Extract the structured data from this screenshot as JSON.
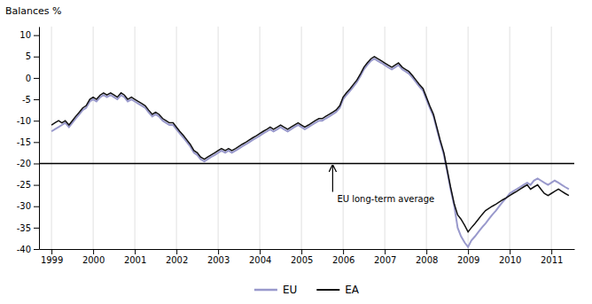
{
  "chart_data": {
    "type": "line",
    "y_label": "Balances %",
    "x": [
      1999.0,
      1999.08,
      1999.17,
      1999.25,
      1999.33,
      1999.42,
      1999.5,
      1999.58,
      1999.67,
      1999.75,
      1999.83,
      1999.92,
      2000.0,
      2000.08,
      2000.17,
      2000.25,
      2000.33,
      2000.42,
      2000.5,
      2000.58,
      2000.67,
      2000.75,
      2000.83,
      2000.92,
      2001.0,
      2001.08,
      2001.17,
      2001.25,
      2001.33,
      2001.42,
      2001.5,
      2001.58,
      2001.67,
      2001.75,
      2001.83,
      2001.92,
      2002.0,
      2002.08,
      2002.17,
      2002.25,
      2002.33,
      2002.42,
      2002.5,
      2002.58,
      2002.67,
      2002.75,
      2002.83,
      2002.92,
      2003.0,
      2003.08,
      2003.17,
      2003.25,
      2003.33,
      2003.42,
      2003.5,
      2003.58,
      2003.67,
      2003.75,
      2003.83,
      2003.92,
      2004.0,
      2004.08,
      2004.17,
      2004.25,
      2004.33,
      2004.42,
      2004.5,
      2004.58,
      2004.67,
      2004.75,
      2004.83,
      2004.92,
      2005.0,
      2005.08,
      2005.17,
      2005.25,
      2005.33,
      2005.42,
      2005.5,
      2005.58,
      2005.67,
      2005.75,
      2005.83,
      2005.92,
      2006.0,
      2006.08,
      2006.17,
      2006.25,
      2006.33,
      2006.42,
      2006.5,
      2006.58,
      2006.67,
      2006.75,
      2006.83,
      2006.92,
      2007.0,
      2007.08,
      2007.17,
      2007.25,
      2007.33,
      2007.42,
      2007.5,
      2007.58,
      2007.67,
      2007.75,
      2007.83,
      2007.92,
      2008.0,
      2008.08,
      2008.17,
      2008.25,
      2008.33,
      2008.42,
      2008.5,
      2008.58,
      2008.67,
      2008.75,
      2008.83,
      2008.92,
      2009.0,
      2009.08,
      2009.17,
      2009.25,
      2009.33,
      2009.42,
      2009.5,
      2009.58,
      2009.67,
      2009.75,
      2009.83,
      2009.92,
      2010.0,
      2010.08,
      2010.17,
      2010.25,
      2010.33,
      2010.42,
      2010.5,
      2010.58,
      2010.67,
      2010.75,
      2010.83,
      2010.92,
      2011.0,
      2011.08,
      2011.17,
      2011.25,
      2011.33,
      2011.42
    ],
    "series": [
      {
        "name": "EU",
        "color": "#9999cc",
        "values": [
          -12.5,
          -12.0,
          -11.5,
          -11.0,
          -10.5,
          -11.5,
          -10.5,
          -9.5,
          -8.5,
          -7.5,
          -7.0,
          -5.5,
          -5.0,
          -5.5,
          -4.5,
          -4.0,
          -4.5,
          -4.0,
          -4.5,
          -5.0,
          -4.0,
          -4.5,
          -5.5,
          -5.0,
          -5.5,
          -6.0,
          -6.5,
          -7.0,
          -8.0,
          -9.0,
          -8.5,
          -9.0,
          -10.0,
          -10.5,
          -11.0,
          -11.0,
          -12.0,
          -13.0,
          -14.0,
          -15.0,
          -16.0,
          -17.5,
          -18.0,
          -19.0,
          -19.5,
          -19.0,
          -18.5,
          -18.0,
          -17.5,
          -17.0,
          -17.5,
          -17.0,
          -17.5,
          -17.0,
          -16.5,
          -16.0,
          -15.5,
          -15.0,
          -14.5,
          -14.0,
          -13.5,
          -13.0,
          -12.5,
          -12.0,
          -12.5,
          -12.0,
          -11.5,
          -12.0,
          -12.5,
          -12.0,
          -11.5,
          -11.0,
          -11.5,
          -12.0,
          -11.5,
          -11.0,
          -10.5,
          -10.0,
          -10.0,
          -9.5,
          -9.0,
          -8.5,
          -8.0,
          -7.0,
          -5.0,
          -4.0,
          -3.0,
          -2.0,
          -1.0,
          0.5,
          2.0,
          3.0,
          4.0,
          4.5,
          4.0,
          3.5,
          3.0,
          2.5,
          2.0,
          2.5,
          3.0,
          2.0,
          1.5,
          1.0,
          0.0,
          -1.0,
          -2.0,
          -3.0,
          -5.0,
          -7.0,
          -9.0,
          -12.0,
          -15.0,
          -18.0,
          -22.0,
          -26.0,
          -30.0,
          -35.0,
          -37.0,
          -38.5,
          -39.5,
          -38.0,
          -37.0,
          -36.0,
          -35.0,
          -34.0,
          -33.0,
          -32.0,
          -31.0,
          -30.0,
          -29.0,
          -28.0,
          -27.0,
          -26.5,
          -26.0,
          -25.5,
          -25.0,
          -24.5,
          -25.0,
          -24.0,
          -23.5,
          -24.0,
          -24.5,
          -25.0,
          -24.5,
          -24.0,
          -24.5,
          -25.0,
          -25.5,
          -26.0
        ]
      },
      {
        "name": "EA",
        "color": "#111111",
        "values": [
          -11.0,
          -10.5,
          -10.0,
          -10.5,
          -10.0,
          -11.0,
          -10.0,
          -9.0,
          -8.0,
          -7.0,
          -6.5,
          -5.0,
          -4.5,
          -5.0,
          -4.0,
          -3.5,
          -4.0,
          -3.5,
          -4.0,
          -4.5,
          -3.5,
          -4.0,
          -5.0,
          -4.5,
          -5.0,
          -5.5,
          -6.0,
          -6.5,
          -7.5,
          -8.5,
          -8.0,
          -8.5,
          -9.5,
          -10.0,
          -10.5,
          -10.5,
          -11.5,
          -12.5,
          -13.5,
          -14.5,
          -15.5,
          -17.0,
          -17.5,
          -18.5,
          -19.0,
          -18.5,
          -18.0,
          -17.5,
          -17.0,
          -16.5,
          -17.0,
          -16.5,
          -17.0,
          -16.5,
          -16.0,
          -15.5,
          -15.0,
          -14.5,
          -14.0,
          -13.5,
          -13.0,
          -12.5,
          -12.0,
          -11.5,
          -12.0,
          -11.5,
          -11.0,
          -11.5,
          -12.0,
          -11.5,
          -11.0,
          -10.5,
          -11.0,
          -11.5,
          -11.0,
          -10.5,
          -10.0,
          -9.5,
          -9.5,
          -9.0,
          -8.5,
          -8.0,
          -7.5,
          -6.5,
          -4.5,
          -3.5,
          -2.5,
          -1.5,
          -0.5,
          1.0,
          2.5,
          3.5,
          4.5,
          5.0,
          4.5,
          4.0,
          3.5,
          3.0,
          2.5,
          3.0,
          3.5,
          2.5,
          2.0,
          1.5,
          0.5,
          -0.5,
          -1.5,
          -2.5,
          -4.5,
          -6.5,
          -8.5,
          -11.5,
          -14.5,
          -17.5,
          -21.5,
          -25.5,
          -29.5,
          -32.0,
          -33.0,
          -34.5,
          -36.0,
          -35.0,
          -34.0,
          -33.0,
          -32.0,
          -31.0,
          -30.5,
          -30.0,
          -29.5,
          -29.0,
          -28.5,
          -28.0,
          -27.5,
          -27.0,
          -26.5,
          -26.0,
          -25.5,
          -25.0,
          -26.0,
          -25.5,
          -25.0,
          -26.0,
          -27.0,
          -27.5,
          -27.0,
          -26.5,
          -26.0,
          -26.5,
          -27.0,
          -27.5
        ]
      }
    ],
    "xlim": [
      1998.7,
      2011.55
    ],
    "xticks": [
      1999,
      2000,
      2001,
      2002,
      2003,
      2004,
      2005,
      2006,
      2007,
      2008,
      2009,
      2010,
      2011
    ],
    "ylim": [
      -40,
      12
    ],
    "yticks": [
      10,
      5,
      0,
      -5,
      -10,
      -15,
      -20,
      -25,
      -30,
      -35,
      -40
    ],
    "grid": "x",
    "legend": "bottom",
    "annotations": [
      {
        "text": "EU long-term average",
        "x": 2005.75,
        "y": -20
      }
    ]
  }
}
